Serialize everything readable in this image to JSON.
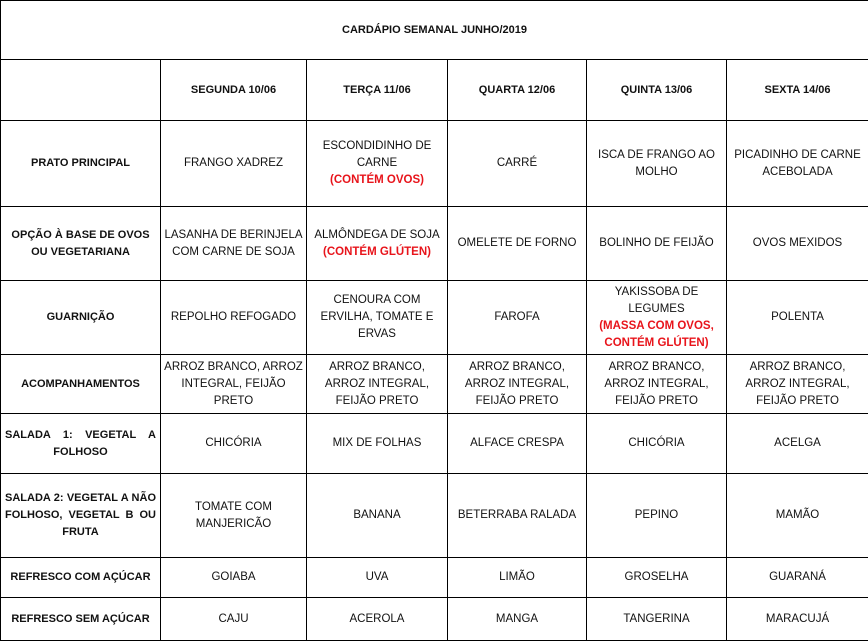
{
  "title": "CARDÁPIO SEMANAL JUNHO/2019",
  "days": [
    "SEGUNDA   10/06",
    "TERÇA 11/06",
    "QUARTA 12/06",
    "QUINTA 13/06",
    "SEXTA 14/06"
  ],
  "rows": [
    {
      "label": "PRATO PRINCIPAL",
      "cells": [
        {
          "text": "FRANGO XADREZ"
        },
        {
          "text": "ESCONDIDINHO DE CARNE",
          "note": "(CONTÉM OVOS)"
        },
        {
          "text": "CARRÉ"
        },
        {
          "text": "ISCA DE FRANGO AO MOLHO"
        },
        {
          "text": "PICADINHO DE CARNE ACEBOLADA"
        }
      ]
    },
    {
      "label": "OPÇÃO À BASE DE OVOS OU VEGETARIANA",
      "cells": [
        {
          "text": "LASANHA DE BERINJELA COM CARNE DE SOJA"
        },
        {
          "text": "ALMÔNDEGA DE SOJA",
          "note": "(CONTÉM GLÚTEN)"
        },
        {
          "text": "OMELETE DE FORNO"
        },
        {
          "text": "BOLINHO DE FEIJÃO"
        },
        {
          "text": "OVOS MEXIDOS"
        }
      ]
    },
    {
      "label": "GUARNIÇÃO",
      "cells": [
        {
          "text": "REPOLHO REFOGADO"
        },
        {
          "text": "CENOURA COM ERVILHA, TOMATE E ERVAS"
        },
        {
          "text": "FAROFA"
        },
        {
          "text": "YAKISSOBA DE LEGUMES",
          "note": "(MASSA COM OVOS, CONTÉM GLÚTEN)"
        },
        {
          "text": "POLENTA"
        }
      ]
    },
    {
      "label": "ACOMPANHAMENTOS",
      "cells": [
        {
          "text": "ARROZ BRANCO, ARROZ INTEGRAL, FEIJÃO PRETO"
        },
        {
          "text": "ARROZ BRANCO, ARROZ INTEGRAL, FEIJÃO PRETO"
        },
        {
          "text": "ARROZ BRANCO, ARROZ INTEGRAL, FEIJÃO PRETO"
        },
        {
          "text": "ARROZ BRANCO, ARROZ INTEGRAL, FEIJÃO PRETO"
        },
        {
          "text": "ARROZ BRANCO, ARROZ INTEGRAL, FEIJÃO PRETO"
        }
      ]
    },
    {
      "label": "SALADA 1: VEGETAL A FOLHOSO",
      "cells": [
        {
          "text": "CHICÓRIA"
        },
        {
          "text": "MIX DE FOLHAS"
        },
        {
          "text": "ALFACE  CRESPA"
        },
        {
          "text": "CHICÓRIA"
        },
        {
          "text": "ACELGA"
        }
      ]
    },
    {
      "label": "SALADA 2: VEGETAL A NÃO FOLHOSO, VEGETAL B OU FRUTA",
      "cells": [
        {
          "text": "TOMATE COM MANJERICÃO"
        },
        {
          "text": "BANANA"
        },
        {
          "text": "BETERRABA RALADA"
        },
        {
          "text": "PEPINO"
        },
        {
          "text": "MAMÃO"
        }
      ]
    },
    {
      "label": "REFRESCO COM AÇÚCAR",
      "cells": [
        {
          "text": "GOIABA"
        },
        {
          "text": "UVA"
        },
        {
          "text": "LIMÃO"
        },
        {
          "text": "GROSELHA"
        },
        {
          "text": "GUARANÁ"
        }
      ]
    },
    {
      "label": "REFRESCO SEM AÇÚCAR",
      "cells": [
        {
          "text": "CAJU"
        },
        {
          "text": "ACEROLA"
        },
        {
          "text": "MANGA"
        },
        {
          "text": "TANGERINA"
        },
        {
          "text": "MARACUJÁ"
        }
      ]
    }
  ],
  "colors": {
    "note": "#e8141b",
    "border": "#000000"
  }
}
